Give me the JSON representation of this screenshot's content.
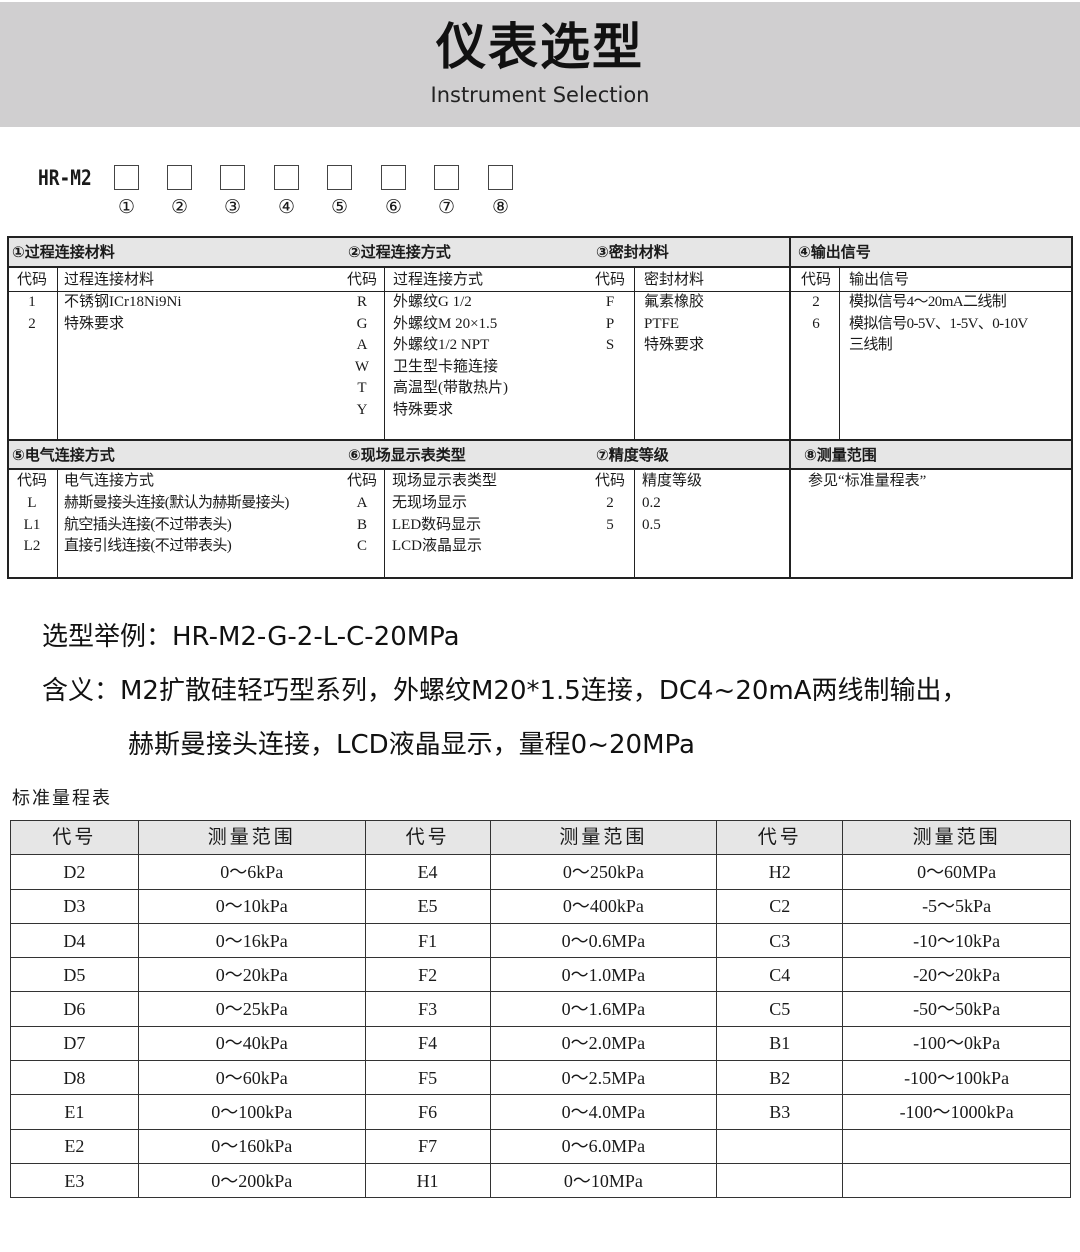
{
  "header": {
    "title": "仪表选型",
    "subtitle": "Instrument Selection"
  },
  "model_code": {
    "prefix": "HR-M2",
    "slots": [
      "①",
      "②",
      "③",
      "④",
      "⑤",
      "⑥",
      "⑦",
      "⑧"
    ]
  },
  "selection": {
    "sections": [
      {
        "title": "①过程连接材料",
        "code_header": "代码",
        "desc_header": "过程连接材料",
        "rows": [
          [
            "1",
            "不锈钢ICr18Ni9Ni"
          ],
          [
            "2",
            "特殊要求"
          ]
        ]
      },
      {
        "title": "②过程连接方式",
        "code_header": "代码",
        "desc_header": "过程连接方式",
        "rows": [
          [
            "R",
            "外螺纹G 1/2"
          ],
          [
            "G",
            "外螺纹M 20×1.5"
          ],
          [
            "A",
            "外螺纹1/2 NPT"
          ],
          [
            "W",
            "卫生型卡箍连接"
          ],
          [
            "T",
            "高温型(带散热片)"
          ],
          [
            "Y",
            "特殊要求"
          ]
        ]
      },
      {
        "title": "③密封材料",
        "code_header": "代码",
        "desc_header": "密封材料",
        "rows": [
          [
            "F",
            "氟素橡胶"
          ],
          [
            "P",
            "PTFE"
          ],
          [
            "S",
            "特殊要求"
          ]
        ]
      },
      {
        "title": "④输出信号",
        "code_header": "代码",
        "desc_header": "输出信号",
        "rows": [
          [
            "2",
            "模拟信号4～20mA二线制"
          ],
          [
            "6",
            "模拟信号0-5V、1-5V、0-10V"
          ],
          [
            "",
            "三线制"
          ]
        ]
      },
      {
        "title": "⑤电气连接方式",
        "code_header": "代码",
        "desc_header": "电气连接方式",
        "rows": [
          [
            "L",
            "赫斯曼接头连接(默认为赫斯曼接头)"
          ],
          [
            "L1",
            "航空插头连接(不过带表头)"
          ],
          [
            "L2",
            "直接引线连接(不过带表头)"
          ]
        ]
      },
      {
        "title": "⑥现场显示表类型",
        "code_header": "代码",
        "desc_header": "现场显示表类型",
        "rows": [
          [
            "A",
            "无现场显示"
          ],
          [
            "B",
            "LED数码显示"
          ],
          [
            "C",
            "LCD液晶显示"
          ]
        ]
      },
      {
        "title": "⑦精度等级",
        "code_header": "代码",
        "desc_header": "精度等级",
        "rows": [
          [
            "2",
            "0.2"
          ],
          [
            "5",
            "0.5"
          ]
        ]
      },
      {
        "title": "⑧测量范围",
        "note": "参见“标准量程表”"
      }
    ]
  },
  "example": {
    "line1": "选型举例：HR-M2-G-2-L-C-20MPa",
    "line2": "含义：M2扩散硅轻巧型系列，外螺纹M20*1.5连接，DC4~20mA两线制输出，",
    "line3": "赫斯曼接头连接，LCD液晶显示，量程0~20MPa"
  },
  "standard_table": {
    "title": "标准量程表",
    "headers": [
      "代号",
      "测量范围",
      "代号",
      "测量范围",
      "代号",
      "测量范围"
    ],
    "rows": [
      [
        "D2",
        "0～6kPa",
        "E4",
        "0～250kPa",
        "H2",
        "0～60MPa"
      ],
      [
        "D3",
        "0～10kPa",
        "E5",
        "0～400kPa",
        "C2",
        "-5～5kPa"
      ],
      [
        "D4",
        "0～16kPa",
        "F1",
        "0～0.6MPa",
        "C3",
        "-10～10kPa"
      ],
      [
        "D5",
        "0～20kPa",
        "F2",
        "0～1.0MPa",
        "C4",
        "-20～20kPa"
      ],
      [
        "D6",
        "0～25kPa",
        "F3",
        "0～1.6MPa",
        "C5",
        "-50～50kPa"
      ],
      [
        "D7",
        "0～40kPa",
        "F4",
        "0～2.0MPa",
        "B1",
        "-100～0kPa"
      ],
      [
        "D8",
        "0～60kPa",
        "F5",
        "0～2.5MPa",
        "B2",
        "-100～100kPa"
      ],
      [
        "E1",
        "0～100kPa",
        "F6",
        "0～4.0MPa",
        "B3",
        "-100～1000kPa"
      ],
      [
        "E2",
        "0～160kPa",
        "F7",
        "0～6.0MPa",
        "",
        ""
      ],
      [
        "E3",
        "0～200kPa",
        "H1",
        "0～10MPa",
        "",
        ""
      ]
    ]
  }
}
